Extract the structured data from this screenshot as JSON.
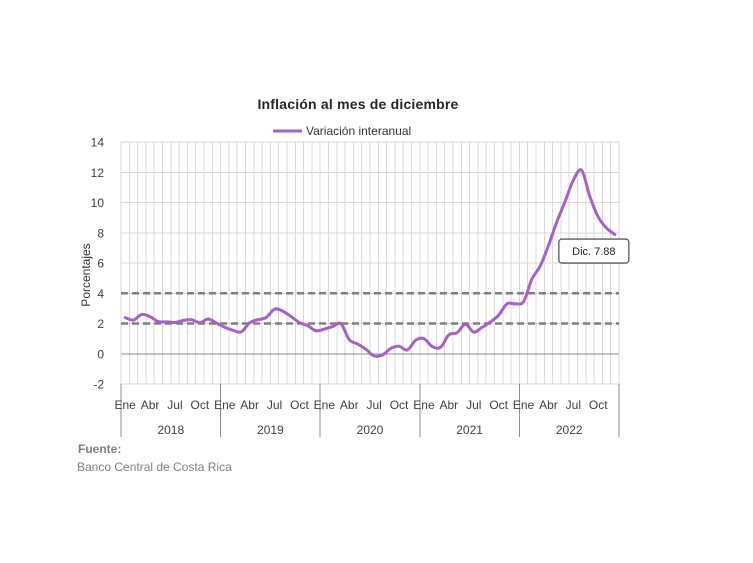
{
  "chart_data": {
    "type": "line",
    "title": "Inflación al mes de diciembre",
    "ylabel": "Porcentajes",
    "ylim": [
      -2,
      14
    ],
    "yticks": [
      14,
      12,
      10,
      8,
      6,
      4,
      2,
      0,
      -2
    ],
    "grid": true,
    "legend": "top",
    "x": [
      "2018-01",
      "2018-02",
      "2018-03",
      "2018-04",
      "2018-05",
      "2018-06",
      "2018-07",
      "2018-08",
      "2018-09",
      "2018-10",
      "2018-11",
      "2018-12",
      "2019-01",
      "2019-02",
      "2019-03",
      "2019-04",
      "2019-05",
      "2019-06",
      "2019-07",
      "2019-08",
      "2019-09",
      "2019-10",
      "2019-11",
      "2019-12",
      "2020-01",
      "2020-02",
      "2020-03",
      "2020-04",
      "2020-05",
      "2020-06",
      "2020-07",
      "2020-08",
      "2020-09",
      "2020-10",
      "2020-11",
      "2020-12",
      "2021-01",
      "2021-02",
      "2021-03",
      "2021-04",
      "2021-05",
      "2021-06",
      "2021-07",
      "2021-08",
      "2021-09",
      "2021-10",
      "2021-11",
      "2021-12",
      "2022-01",
      "2022-02",
      "2022-03",
      "2022-04",
      "2022-05",
      "2022-06",
      "2022-07",
      "2022-08",
      "2022-09",
      "2022-10",
      "2022-11",
      "2022-12"
    ],
    "month_tick_labels": [
      "Ene",
      "Abr",
      "Jul",
      "Oct"
    ],
    "year_labels": [
      "2018",
      "2019",
      "2020",
      "2021",
      "2022"
    ],
    "series": [
      {
        "name": "Variación interanual",
        "values": [
          2.39,
          2.23,
          2.6,
          2.45,
          2.13,
          2.11,
          2.07,
          2.2,
          2.25,
          2.05,
          2.3,
          2.03,
          1.75,
          1.55,
          1.45,
          2.05,
          2.25,
          2.4,
          2.95,
          2.82,
          2.46,
          2.06,
          1.85,
          1.52,
          1.63,
          1.8,
          1.98,
          0.93,
          0.65,
          0.3,
          -0.14,
          -0.08,
          0.35,
          0.5,
          0.25,
          0.89,
          1.0,
          0.48,
          0.43,
          1.25,
          1.4,
          1.95,
          1.43,
          1.75,
          2.1,
          2.55,
          3.3,
          3.3,
          3.45,
          4.93,
          5.79,
          7.15,
          8.71,
          10.06,
          11.48,
          12.13,
          10.37,
          9.04,
          8.31,
          7.88
        ]
      }
    ],
    "reference_lines": [
      2,
      4
    ],
    "annotation": {
      "text": "Dic. 7.88"
    }
  },
  "source": {
    "label": "Fuente:",
    "text": "Banco Central de Costa Rica"
  },
  "colors": {
    "series": "#a660c7",
    "reference": "#7f7f7f",
    "grid": "#d9d9d9",
    "axis": "#8c8c8c",
    "separator": "#8c8c8c",
    "callout_border": "#595959"
  }
}
